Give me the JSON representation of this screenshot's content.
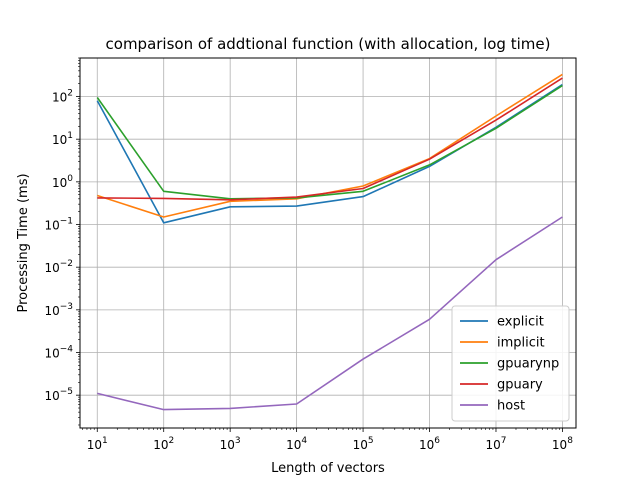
{
  "chart_data": {
    "type": "line",
    "title": "comparison of addtional function (with allocation, log time)",
    "xlabel": "Length of vectors",
    "ylabel": "Processing Time (ms)",
    "xscale": "log",
    "yscale": "log",
    "xlim": [
      5.5,
      160000000
    ],
    "ylim": [
      1.7e-06,
      800
    ],
    "grid": true,
    "legend_position": "lower-right",
    "x": [
      10,
      100,
      1000,
      10000,
      100000,
      1000000,
      10000000,
      100000000
    ],
    "x_ticks": [
      {
        "value": 10,
        "base": "10",
        "exp": "1"
      },
      {
        "value": 100,
        "base": "10",
        "exp": "2"
      },
      {
        "value": 1000,
        "base": "10",
        "exp": "3"
      },
      {
        "value": 10000,
        "base": "10",
        "exp": "4"
      },
      {
        "value": 100000,
        "base": "10",
        "exp": "5"
      },
      {
        "value": 1000000,
        "base": "10",
        "exp": "6"
      },
      {
        "value": 10000000,
        "base": "10",
        "exp": "7"
      },
      {
        "value": 100000000,
        "base": "10",
        "exp": "8"
      }
    ],
    "y_ticks": [
      {
        "value": 1e-05,
        "base": "10",
        "exp": "−5"
      },
      {
        "value": 0.0001,
        "base": "10",
        "exp": "−4"
      },
      {
        "value": 0.001,
        "base": "10",
        "exp": "−3"
      },
      {
        "value": 0.01,
        "base": "10",
        "exp": "−2"
      },
      {
        "value": 0.1,
        "base": "10",
        "exp": "−1"
      },
      {
        "value": 1,
        "base": "10",
        "exp": "0"
      },
      {
        "value": 10,
        "base": "10",
        "exp": "1"
      },
      {
        "value": 100,
        "base": "10",
        "exp": "2"
      }
    ],
    "series": [
      {
        "name": "explicit",
        "color": "#1f77b4",
        "values": [
          80,
          0.11,
          0.26,
          0.27,
          0.45,
          2.3,
          19,
          190
        ]
      },
      {
        "name": "implicit",
        "color": "#ff7f0e",
        "values": [
          0.48,
          0.15,
          0.35,
          0.4,
          0.8,
          3.5,
          35,
          330
        ]
      },
      {
        "name": "gpuarynp",
        "color": "#2ca02c",
        "values": [
          95,
          0.6,
          0.4,
          0.42,
          0.6,
          2.5,
          18,
          180
        ]
      },
      {
        "name": "gpuary",
        "color": "#d62728",
        "values": [
          0.42,
          0.41,
          0.38,
          0.44,
          0.7,
          3.4,
          28,
          270
        ]
      },
      {
        "name": "host",
        "color": "#9467bd",
        "values": [
          1.1e-05,
          4.6e-06,
          4.9e-06,
          6.2e-06,
          7e-05,
          0.0006,
          0.015,
          0.15
        ]
      }
    ]
  }
}
